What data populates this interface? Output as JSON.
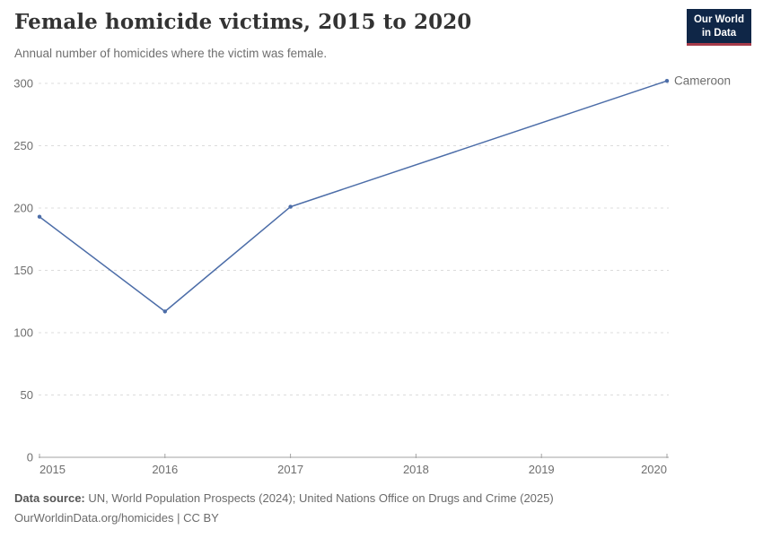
{
  "logo": {
    "line1": "Our World",
    "line2": "in Data"
  },
  "chart_data": {
    "type": "line",
    "title": "Female homicide victims, 2015 to 2020",
    "subtitle": "Annual number of homicides where the victim was female.",
    "xlim": [
      2015,
      2020
    ],
    "ylim": [
      0,
      300
    ],
    "x_ticks": [
      "2015",
      "2016",
      "2017",
      "2018",
      "2019",
      "2020"
    ],
    "y_ticks": [
      0,
      50,
      100,
      150,
      200,
      250,
      300
    ],
    "grid": "horizontal-dashed",
    "legend": "line-end-label",
    "series": [
      {
        "name": "Cameroon",
        "x": [
          2015,
          2016,
          2017,
          2020
        ],
        "values": [
          193,
          117,
          201,
          302
        ],
        "color": "#4C6DA8"
      }
    ],
    "colors": {
      "axis_text": "#6e6e6e",
      "gridline": "#dcdcdc",
      "axis_line": "#a3a3a3"
    }
  },
  "footer": {
    "datasource_label": "Data source:",
    "datasource_text": "UN, World Population Prospects (2024); United Nations Office on Drugs and Crime (2025)",
    "license_text": "OurWorldinData.org/homicides | CC BY"
  }
}
